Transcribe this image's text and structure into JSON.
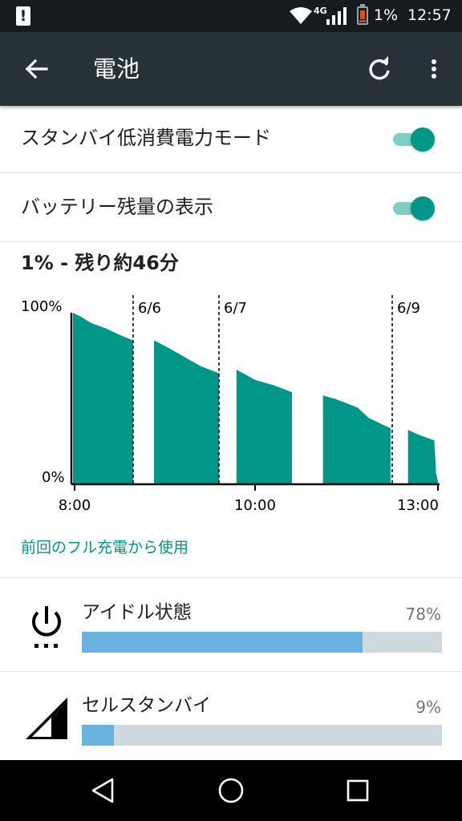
{
  "status_bar": {
    "alert_icon": "alert-icon",
    "network_type": "4G",
    "battery_percent": "1%",
    "time": "12:57"
  },
  "app_bar": {
    "title": "電池",
    "back_icon": "arrow-back-icon",
    "refresh_icon": "refresh-icon",
    "more_icon": "more-vert-icon"
  },
  "settings": [
    {
      "label": "スタンバイ低消費電力モード",
      "on": true
    },
    {
      "label": "バッテリー残量の表示",
      "on": true
    }
  ],
  "battery_summary": "1% - 残り約46分",
  "chart_data": {
    "type": "area",
    "ylabels": [
      "100%",
      "0%"
    ],
    "xlabels": [
      "8:00",
      "10:00",
      "13:00"
    ],
    "date_markers": [
      "6/6",
      "6/7",
      "6/9"
    ],
    "ylim": [
      0,
      100
    ],
    "fill_color": "#009688",
    "series": [
      {
        "values": [
          [
            0,
            99
          ],
          [
            0.02,
            97
          ],
          [
            0.05,
            93
          ],
          [
            0.09,
            90
          ],
          [
            0.13,
            86
          ],
          [
            0.165,
            83
          ]
        ]
      },
      {
        "values": [
          [
            0.222,
            83
          ],
          [
            0.25,
            80
          ],
          [
            0.3,
            74
          ],
          [
            0.35,
            68
          ],
          [
            0.4,
            64
          ]
        ]
      },
      {
        "values": [
          [
            0.448,
            66
          ],
          [
            0.5,
            60
          ],
          [
            0.55,
            57
          ],
          [
            0.6,
            53
          ]
        ]
      },
      {
        "values": [
          [
            0.685,
            51
          ],
          [
            0.72,
            49
          ],
          [
            0.78,
            44
          ],
          [
            0.81,
            38
          ],
          [
            0.87,
            32
          ]
        ]
      },
      {
        "values": [
          [
            0.918,
            31
          ],
          [
            0.95,
            28
          ],
          [
            0.99,
            25
          ],
          [
            0.995,
            6
          ],
          [
            1.0,
            1
          ]
        ]
      }
    ]
  },
  "history_link": "前回のフル充電から使用",
  "usage": [
    {
      "label": "アイドル状態",
      "percent_text": "78%",
      "value": 78,
      "icon": "power-icon"
    },
    {
      "label": "セルスタンバイ",
      "percent_text": "9%",
      "value": 9,
      "icon": "cell-signal-icon"
    }
  ],
  "nav_bar": {
    "back_icon": "nav-back-icon",
    "home_icon": "nav-home-icon",
    "recents_icon": "nav-recents-icon"
  },
  "colors": {
    "accent": "#009688",
    "app_bar": "#263238",
    "usage_bar": "#6ab2df"
  }
}
